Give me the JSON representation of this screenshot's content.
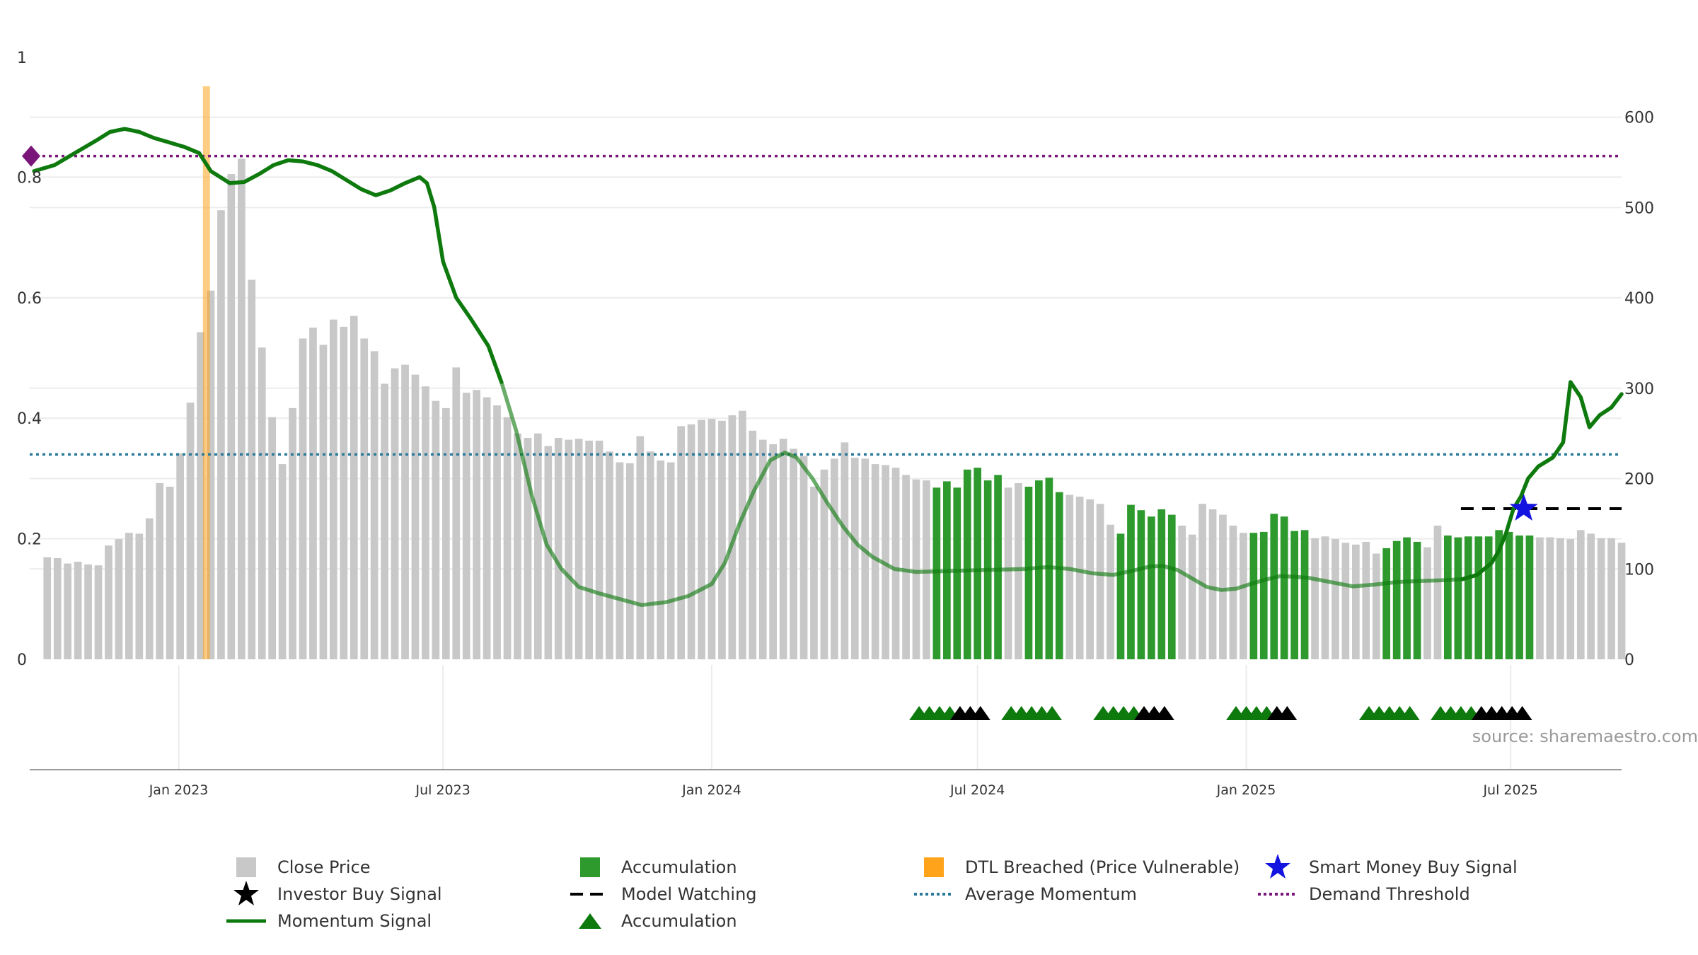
{
  "chart_data": {
    "type": "bar",
    "source_note": "source: sharemaestro.com",
    "left_axis": {
      "ticks": [
        "0",
        "0.2",
        "0.4",
        "0.6",
        "0.8",
        "1"
      ],
      "range": [
        0,
        1
      ]
    },
    "right_axis": {
      "ticks": [
        "0",
        "100",
        "200",
        "300",
        "400",
        "500",
        "600"
      ],
      "range": [
        0,
        667
      ]
    },
    "x_ticks": [
      "Jan 2023",
      "Jul 2023",
      "Jan 2024",
      "Jul 2024",
      "Jan 2025",
      "Jul 2025"
    ],
    "x_tick_dates": [
      "2023-01-01",
      "2023-07-01",
      "2024-01-01",
      "2024-07-01",
      "2025-01-01",
      "2025-07-01"
    ],
    "date_range": [
      "2022-09-21",
      "2025-09-15"
    ],
    "weekly_bar_start": "2022-10-03",
    "weekly_close_price": [
      113,
      112,
      106,
      108,
      105,
      104,
      126,
      133,
      140,
      139,
      156,
      195,
      191,
      228,
      284,
      362,
      408,
      497,
      537,
      554,
      420,
      345,
      268,
      216,
      278,
      355,
      367,
      348,
      376,
      368,
      380,
      355,
      341,
      305,
      322,
      326,
      315,
      302,
      286,
      278,
      323,
      295,
      298,
      290,
      281,
      268,
      250,
      245,
      250,
      236,
      245,
      243,
      244,
      242,
      242,
      230,
      218,
      217,
      247,
      230,
      220,
      218,
      258,
      260,
      265,
      266,
      264,
      270,
      275,
      253,
      243,
      238,
      244,
      233,
      225,
      191,
      210,
      222,
      240,
      223,
      222,
      216,
      215,
      212,
      204,
      199,
      198,
      190,
      197,
      190,
      210,
      212,
      198,
      204,
      190,
      195,
      191,
      198,
      201,
      185,
      182,
      180,
      177,
      172,
      149,
      139,
      171,
      165,
      158,
      166,
      160,
      148,
      138,
      172,
      166,
      160,
      148,
      140,
      140,
      141,
      161,
      158,
      142,
      143,
      134,
      136,
      133,
      129,
      127,
      130,
      117,
      123,
      131,
      135,
      130,
      124,
      148,
      137,
      135,
      136,
      136,
      136,
      143,
      141,
      137,
      137,
      135,
      135,
      134,
      133,
      143,
      139,
      134,
      134,
      129
    ],
    "accumulation_ranges": [
      [
        87,
        93
      ],
      [
        96,
        99
      ],
      [
        105,
        110
      ],
      [
        118,
        123
      ],
      [
        131,
        134
      ],
      [
        137,
        145
      ]
    ],
    "dtl_breached_date": "2023-01-20",
    "momentum_signal": [
      {
        "date": "2022-09-24",
        "value": 0.81
      },
      {
        "date": "2022-10-08",
        "value": 0.82
      },
      {
        "date": "2022-10-22",
        "value": 0.84
      },
      {
        "date": "2022-11-05",
        "value": 0.86
      },
      {
        "date": "2022-11-15",
        "value": 0.875
      },
      {
        "date": "2022-11-25",
        "value": 0.88
      },
      {
        "date": "2022-12-05",
        "value": 0.875
      },
      {
        "date": "2022-12-15",
        "value": 0.865
      },
      {
        "date": "2022-12-25",
        "value": 0.858
      },
      {
        "date": "2023-01-05",
        "value": 0.85
      },
      {
        "date": "2023-01-15",
        "value": 0.84
      },
      {
        "date": "2023-01-23",
        "value": 0.81
      },
      {
        "date": "2023-02-05",
        "value": 0.79
      },
      {
        "date": "2023-02-15",
        "value": 0.792
      },
      {
        "date": "2023-02-25",
        "value": 0.805
      },
      {
        "date": "2023-03-07",
        "value": 0.82
      },
      {
        "date": "2023-03-17",
        "value": 0.828
      },
      {
        "date": "2023-03-27",
        "value": 0.826
      },
      {
        "date": "2023-04-06",
        "value": 0.82
      },
      {
        "date": "2023-04-16",
        "value": 0.81
      },
      {
        "date": "2023-04-26",
        "value": 0.795
      },
      {
        "date": "2023-05-06",
        "value": 0.78
      },
      {
        "date": "2023-05-16",
        "value": 0.77
      },
      {
        "date": "2023-05-26",
        "value": 0.778
      },
      {
        "date": "2023-06-05",
        "value": 0.79
      },
      {
        "date": "2023-06-15",
        "value": 0.8
      },
      {
        "date": "2023-06-20",
        "value": 0.79
      },
      {
        "date": "2023-06-25",
        "value": 0.75
      },
      {
        "date": "2023-07-01",
        "value": 0.66
      },
      {
        "date": "2023-07-10",
        "value": 0.6
      },
      {
        "date": "2023-07-20",
        "value": 0.565
      },
      {
        "date": "2023-08-01",
        "value": 0.52
      },
      {
        "date": "2023-08-10",
        "value": 0.46
      },
      {
        "date": "2023-08-20",
        "value": 0.38
      },
      {
        "date": "2023-08-31",
        "value": 0.27
      },
      {
        "date": "2023-09-10",
        "value": 0.19
      },
      {
        "date": "2023-09-20",
        "value": 0.15
      },
      {
        "date": "2023-10-02",
        "value": 0.12
      },
      {
        "date": "2023-10-15",
        "value": 0.11
      },
      {
        "date": "2023-10-30",
        "value": 0.1
      },
      {
        "date": "2023-11-14",
        "value": 0.09
      },
      {
        "date": "2023-12-01",
        "value": 0.095
      },
      {
        "date": "2023-12-16",
        "value": 0.105
      },
      {
        "date": "2024-01-01",
        "value": 0.125
      },
      {
        "date": "2024-01-10",
        "value": 0.16
      },
      {
        "date": "2024-01-20",
        "value": 0.225
      },
      {
        "date": "2024-01-30",
        "value": 0.28
      },
      {
        "date": "2024-02-10",
        "value": 0.33
      },
      {
        "date": "2024-02-20",
        "value": 0.343
      },
      {
        "date": "2024-02-28",
        "value": 0.335
      },
      {
        "date": "2024-03-10",
        "value": 0.3
      },
      {
        "date": "2024-03-20",
        "value": 0.26
      },
      {
        "date": "2024-03-31",
        "value": 0.22
      },
      {
        "date": "2024-04-10",
        "value": 0.19
      },
      {
        "date": "2024-04-20",
        "value": 0.17
      },
      {
        "date": "2024-05-05",
        "value": 0.15
      },
      {
        "date": "2024-05-20",
        "value": 0.145
      },
      {
        "date": "2024-06-04",
        "value": 0.146
      },
      {
        "date": "2024-06-19",
        "value": 0.147
      },
      {
        "date": "2024-07-04",
        "value": 0.148
      },
      {
        "date": "2024-07-19",
        "value": 0.149
      },
      {
        "date": "2024-08-03",
        "value": 0.15
      },
      {
        "date": "2024-08-18",
        "value": 0.153
      },
      {
        "date": "2024-09-02",
        "value": 0.15
      },
      {
        "date": "2024-09-17",
        "value": 0.143
      },
      {
        "date": "2024-10-02",
        "value": 0.14
      },
      {
        "date": "2024-10-17",
        "value": 0.148
      },
      {
        "date": "2024-10-27",
        "value": 0.154
      },
      {
        "date": "2024-11-05",
        "value": 0.155
      },
      {
        "date": "2024-11-15",
        "value": 0.148
      },
      {
        "date": "2024-11-25",
        "value": 0.134
      },
      {
        "date": "2024-12-05",
        "value": 0.12
      },
      {
        "date": "2024-12-15",
        "value": 0.115
      },
      {
        "date": "2024-12-25",
        "value": 0.117
      },
      {
        "date": "2025-01-04",
        "value": 0.125
      },
      {
        "date": "2025-01-14",
        "value": 0.132
      },
      {
        "date": "2025-01-24",
        "value": 0.138
      },
      {
        "date": "2025-02-03",
        "value": 0.137
      },
      {
        "date": "2025-02-13",
        "value": 0.135
      },
      {
        "date": "2025-02-28",
        "value": 0.128
      },
      {
        "date": "2025-03-15",
        "value": 0.121
      },
      {
        "date": "2025-03-30",
        "value": 0.124
      },
      {
        "date": "2025-04-14",
        "value": 0.128
      },
      {
        "date": "2025-04-29",
        "value": 0.13
      },
      {
        "date": "2025-05-14",
        "value": 0.131
      },
      {
        "date": "2025-05-29",
        "value": 0.133
      },
      {
        "date": "2025-06-08",
        "value": 0.14
      },
      {
        "date": "2025-06-18",
        "value": 0.16
      },
      {
        "date": "2025-06-23",
        "value": 0.18
      },
      {
        "date": "2025-06-28",
        "value": 0.21
      },
      {
        "date": "2025-07-03",
        "value": 0.25
      },
      {
        "date": "2025-07-08",
        "value": 0.27
      },
      {
        "date": "2025-07-13",
        "value": 0.3
      },
      {
        "date": "2025-07-20",
        "value": 0.32
      },
      {
        "date": "2025-07-30",
        "value": 0.335
      },
      {
        "date": "2025-08-06",
        "value": 0.36
      },
      {
        "date": "2025-08-11",
        "value": 0.46
      },
      {
        "date": "2025-08-18",
        "value": 0.435
      },
      {
        "date": "2025-08-24",
        "value": 0.385
      },
      {
        "date": "2025-08-31",
        "value": 0.405
      },
      {
        "date": "2025-09-08",
        "value": 0.418
      },
      {
        "date": "2025-09-15",
        "value": 0.44
      }
    ],
    "momentum_faded_range": [
      "2023-08-15",
      "2025-06-01"
    ],
    "average_momentum": 0.34,
    "demand_threshold": 0.835,
    "demand_marker_value": 0.835,
    "model_watching": {
      "from": "2025-05-28",
      "to": "2025-09-15",
      "value": 0.25
    },
    "smart_money_buy_signal": {
      "date": "2025-07-10",
      "value": 0.25
    },
    "triangle_signals": [
      {
        "date": "2024-05-22",
        "kind": "accumulation"
      },
      {
        "date": "2024-05-29",
        "kind": "accumulation"
      },
      {
        "date": "2024-06-05",
        "kind": "accumulation"
      },
      {
        "date": "2024-06-12",
        "kind": "accumulation"
      },
      {
        "date": "2024-06-19",
        "kind": "investor"
      },
      {
        "date": "2024-06-26",
        "kind": "investor"
      },
      {
        "date": "2024-07-03",
        "kind": "investor"
      },
      {
        "date": "2024-07-24",
        "kind": "accumulation"
      },
      {
        "date": "2024-07-31",
        "kind": "accumulation"
      },
      {
        "date": "2024-08-07",
        "kind": "accumulation"
      },
      {
        "date": "2024-08-14",
        "kind": "accumulation"
      },
      {
        "date": "2024-08-21",
        "kind": "accumulation"
      },
      {
        "date": "2024-09-25",
        "kind": "accumulation"
      },
      {
        "date": "2024-10-02",
        "kind": "accumulation"
      },
      {
        "date": "2024-10-09",
        "kind": "accumulation"
      },
      {
        "date": "2024-10-16",
        "kind": "accumulation"
      },
      {
        "date": "2024-10-23",
        "kind": "investor"
      },
      {
        "date": "2024-10-30",
        "kind": "investor"
      },
      {
        "date": "2024-11-06",
        "kind": "investor"
      },
      {
        "date": "2024-12-25",
        "kind": "accumulation"
      },
      {
        "date": "2025-01-01",
        "kind": "accumulation"
      },
      {
        "date": "2025-01-08",
        "kind": "accumulation"
      },
      {
        "date": "2025-01-15",
        "kind": "accumulation"
      },
      {
        "date": "2025-01-22",
        "kind": "investor"
      },
      {
        "date": "2025-01-29",
        "kind": "investor"
      },
      {
        "date": "2025-03-26",
        "kind": "accumulation"
      },
      {
        "date": "2025-04-02",
        "kind": "accumulation"
      },
      {
        "date": "2025-04-09",
        "kind": "accumulation"
      },
      {
        "date": "2025-04-16",
        "kind": "accumulation"
      },
      {
        "date": "2025-04-23",
        "kind": "accumulation"
      },
      {
        "date": "2025-05-14",
        "kind": "accumulation"
      },
      {
        "date": "2025-05-21",
        "kind": "accumulation"
      },
      {
        "date": "2025-05-28",
        "kind": "accumulation"
      },
      {
        "date": "2025-06-04",
        "kind": "accumulation"
      },
      {
        "date": "2025-06-11",
        "kind": "investor"
      },
      {
        "date": "2025-06-18",
        "kind": "investor"
      },
      {
        "date": "2025-06-25",
        "kind": "investor"
      },
      {
        "date": "2025-07-02",
        "kind": "investor"
      },
      {
        "date": "2025-07-09",
        "kind": "investor"
      }
    ],
    "colors": {
      "close_price": "#c8c8c8",
      "accumulation": "#2e9a2e",
      "dtl": "#ffa41a",
      "momentum": "#0e7a0e",
      "average_momentum": "#2a7a9a",
      "demand_threshold": "#7a167a",
      "smart_money": "#1414e0",
      "investor": "#000000",
      "grid": "#ececec"
    },
    "legend": [
      {
        "label": "Close Price",
        "symbol": "square-grey"
      },
      {
        "label": "Accumulation",
        "symbol": "square-green"
      },
      {
        "label": "DTL Breached (Price Vulnerable)",
        "symbol": "square-orange"
      },
      {
        "label": "Smart Money Buy Signal",
        "symbol": "star-blue"
      },
      {
        "label": "Investor Buy Signal",
        "symbol": "star-black"
      },
      {
        "label": "Model Watching",
        "symbol": "dash-black"
      },
      {
        "label": "Average Momentum",
        "symbol": "dot-teal"
      },
      {
        "label": "Demand Threshold",
        "symbol": "dot-purple"
      },
      {
        "label": "Momentum Signal",
        "symbol": "line-green"
      },
      {
        "label": "Accumulation",
        "symbol": "triangle-green"
      }
    ],
    "grid": true,
    "legend_position": "bottom"
  }
}
